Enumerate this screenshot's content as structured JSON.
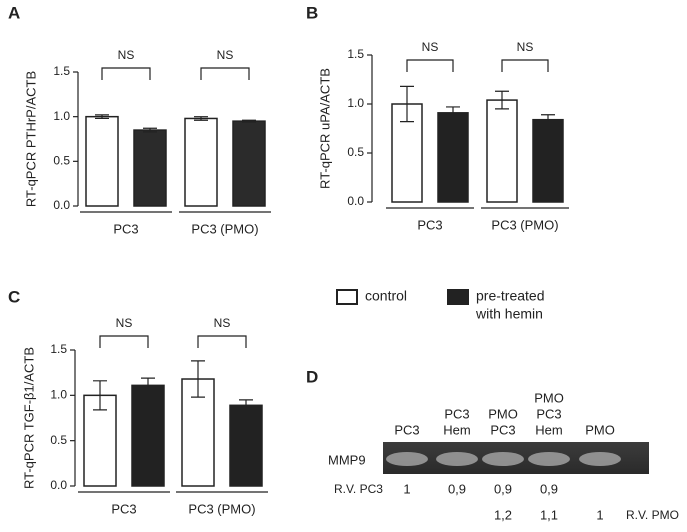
{
  "chart_data": [
    {
      "type": "bar",
      "panel_label": "A",
      "y_label": "RT-qPCR PTHrP/ACTB",
      "categories": [
        "PC3",
        "PC3 (PMO)"
      ],
      "series": [
        {
          "color": "#ffffff",
          "values": [
            1.0,
            0.98
          ],
          "errors": [
            0.02,
            0.02
          ]
        },
        {
          "color": "#2b2b2b",
          "values": [
            0.85,
            0.95
          ],
          "errors": [
            0.02,
            0.01
          ]
        }
      ],
      "annotations": [
        "NS",
        "NS"
      ],
      "ylim": [
        0,
        1.5
      ],
      "yticks": [
        {
          "value": 0,
          "label": "0.0"
        },
        0.5,
        {
          "value": 1,
          "label": "1.0"
        },
        1.5
      ]
    },
    {
      "type": "bar",
      "panel_label": "B",
      "y_label": "RT-qPCR uPA/ACTB",
      "categories": [
        "PC3",
        "PC3 (PMO)"
      ],
      "series": [
        {
          "color": "#ffffff",
          "values": [
            1.0,
            1.04
          ],
          "errors": [
            0.18,
            0.09
          ]
        },
        {
          "color": "#222222",
          "values": [
            0.91,
            0.84
          ],
          "errors": [
            0.06,
            0.05
          ]
        }
      ],
      "annotations": [
        "NS",
        "NS"
      ],
      "ylim": [
        0,
        1.5
      ],
      "yticks": [
        {
          "value": 0,
          "label": "0.0"
        },
        0.5,
        {
          "value": 1,
          "label": "1.0"
        },
        1.5
      ]
    },
    {
      "type": "bar",
      "panel_label": "C",
      "y_label": "RT-qPCR TGF-β1/ACTB",
      "categories": [
        "PC3",
        "PC3 (PMO)"
      ],
      "series": [
        {
          "color": "#ffffff",
          "values": [
            1.0,
            1.18
          ],
          "errors": [
            0.16,
            0.2
          ]
        },
        {
          "color": "#222222",
          "values": [
            1.11,
            0.89
          ],
          "errors": [
            0.08,
            0.06
          ]
        }
      ],
      "annotations": [
        "NS",
        "NS"
      ],
      "ylim": [
        0,
        1.5
      ],
      "yticks": [
        {
          "value": 0,
          "label": "0.0"
        },
        0.5,
        {
          "value": 1,
          "label": "1.0"
        },
        1.5
      ]
    }
  ],
  "legend": [
    {
      "color": "#ffffff",
      "label_lines": [
        "control"
      ]
    },
    {
      "color": "#222222",
      "label_lines": [
        "pre-treated",
        "with hemin"
      ]
    }
  ],
  "panel_d": {
    "panel_label": "D",
    "row_label": "MMP9",
    "lanes": [
      [
        "PC3"
      ],
      [
        "PC3",
        "Hem"
      ],
      [
        "PMO",
        "PC3"
      ],
      [
        "PMO",
        "PC3",
        "Hem"
      ],
      [
        "PMO"
      ]
    ],
    "rv_pc3": {
      "label": "R.V. PC3",
      "values": [
        "1",
        "0,9",
        "0,9",
        "0,9",
        null
      ]
    },
    "rv_pmo": {
      "label": "R.V. PMO",
      "values": [
        null,
        null,
        "1,2",
        "1,1",
        "1"
      ]
    }
  }
}
